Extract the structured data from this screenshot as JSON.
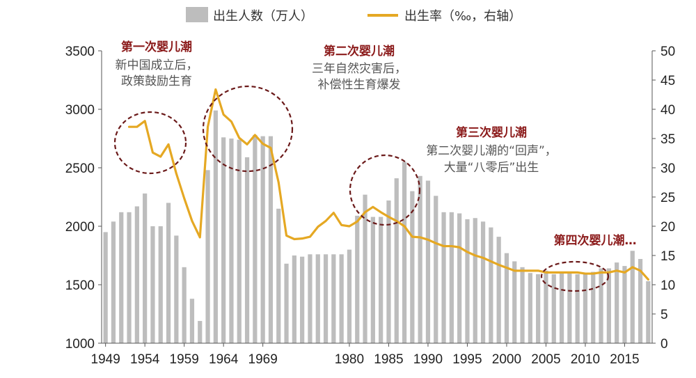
{
  "chart_data": {
    "type": "bar+line",
    "legend": {
      "placement": "top-center",
      "bar_label": "出生人数（万人）",
      "line_label": "出生率（‰，右轴）"
    },
    "colors": {
      "bar": "#bdbdbd",
      "line": "#e5a823",
      "annotation": "#8b1a1a",
      "circle": "#6b1a1a"
    },
    "x": [
      1949,
      1950,
      1951,
      1952,
      1953,
      1954,
      1955,
      1956,
      1957,
      1958,
      1959,
      1960,
      1961,
      1962,
      1963,
      1964,
      1965,
      1966,
      1967,
      1968,
      1969,
      1970,
      1971,
      1972,
      1973,
      1974,
      1975,
      1976,
      1977,
      1978,
      1979,
      1980,
      1981,
      1982,
      1983,
      1984,
      1985,
      1986,
      1987,
      1988,
      1989,
      1990,
      1991,
      1992,
      1993,
      1994,
      1995,
      1996,
      1997,
      1998,
      1999,
      2000,
      2001,
      2002,
      2003,
      2004,
      2005,
      2006,
      2007,
      2008,
      2009,
      2010,
      2011,
      2012,
      2013,
      2014,
      2015,
      2016,
      2017,
      2018
    ],
    "x_ticks": [
      1949,
      1954,
      1959,
      1964,
      1969,
      1980,
      1985,
      1990,
      1995,
      2000,
      2005,
      2010,
      2015
    ],
    "births": [
      1950,
      2040,
      2120,
      2120,
      2170,
      2280,
      2000,
      2000,
      2200,
      1920,
      1650,
      1380,
      1190,
      2480,
      2990,
      2760,
      2750,
      2740,
      2590,
      2780,
      2770,
      2770,
      2150,
      1680,
      1750,
      1740,
      1760,
      1760,
      1760,
      1760,
      1760,
      1800,
      2090,
      2270,
      2080,
      2080,
      2220,
      2410,
      2550,
      2300,
      2430,
      2390,
      2260,
      2120,
      2120,
      2110,
      2060,
      2070,
      2040,
      1990,
      1910,
      1770,
      1700,
      1650,
      1600,
      1590,
      1620,
      1590,
      1600,
      1610,
      1590,
      1590,
      1610,
      1640,
      1640,
      1690,
      1660,
      1790,
      1720,
      1530
    ],
    "birth_rate": [
      null,
      null,
      null,
      37,
      37,
      38,
      32.6,
      31.9,
      34,
      29,
      24.8,
      20.9,
      18.1,
      37,
      43.4,
      39.1,
      37.9,
      35.1,
      34,
      35.6,
      34.1,
      33.4,
      27.5,
      18.4,
      17.8,
      17.9,
      18.2,
      19.9,
      20.9,
      22.3,
      20.2,
      20,
      20.8,
      22.4,
      23.3,
      22.4,
      21.6,
      20.9,
      20,
      18.2,
      18.1,
      17.7,
      17.1,
      16.6,
      16.6,
      16.4,
      15.6,
      15,
      14.6,
      14,
      13.4,
      12.9,
      12.4,
      12.4,
      12.4,
      12.4,
      12.1,
      12.1,
      12.1,
      12.1,
      12.1,
      11.9,
      11.9,
      12.1,
      12.1,
      12.4,
      12.1,
      13,
      12.4,
      10.9
    ],
    "y_left": {
      "range": [
        1000,
        3500
      ],
      "ticks": [
        1000,
        1500,
        2000,
        2500,
        3000,
        3500
      ]
    },
    "y_right": {
      "range": [
        0,
        50
      ],
      "ticks": [
        0,
        5,
        10,
        15,
        20,
        25,
        30,
        35,
        40,
        45,
        50
      ]
    },
    "annotations": [
      {
        "title": "第一次婴儿潮",
        "lines": [
          "新中国成立后，",
          "政策鼓励生育"
        ]
      },
      {
        "title": "第二次婴儿潮",
        "lines": [
          "三年自然灾害后，",
          "补偿性生育爆发"
        ]
      },
      {
        "title": "第三次婴儿潮",
        "lines": [
          "第二次婴儿潮的“回声”，",
          "大量“八零后”出生"
        ]
      },
      {
        "title": "第四次婴儿潮…",
        "lines": []
      }
    ]
  }
}
